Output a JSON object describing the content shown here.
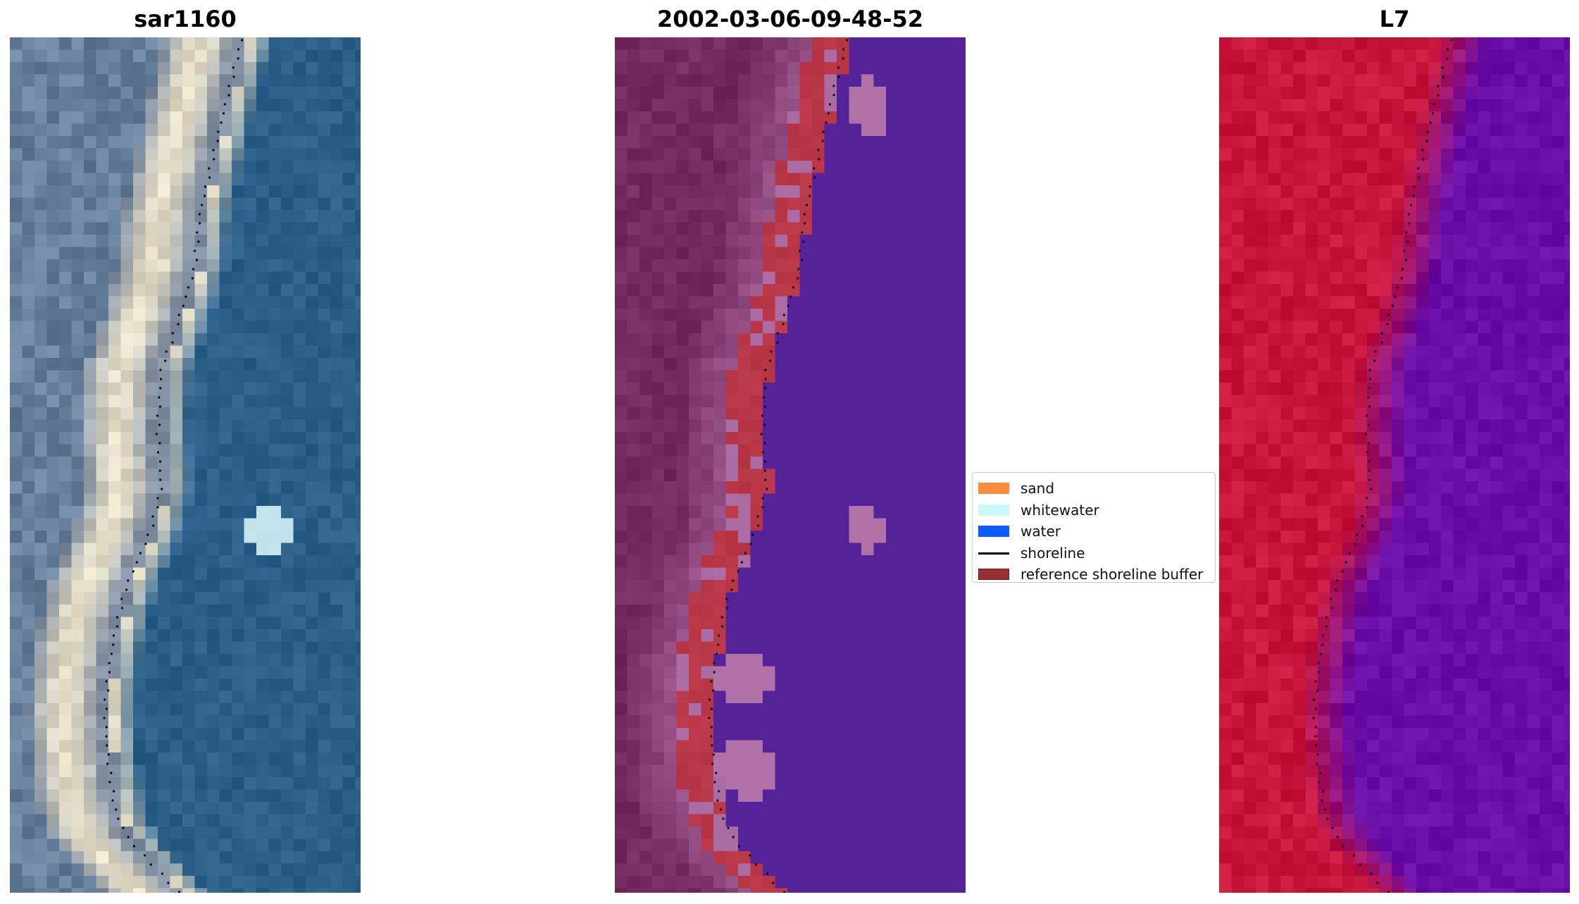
{
  "panels": [
    {
      "title": "sar1160",
      "kind": "rgb"
    },
    {
      "title": "2002-03-06-09-48-52",
      "kind": "classified"
    },
    {
      "title": "L7",
      "kind": "falsecolor"
    }
  ],
  "legend": {
    "items": [
      {
        "label": "sand",
        "color": "#ff8c3a",
        "style": "patch"
      },
      {
        "label": "whitewater",
        "color": "#c8f8f8",
        "style": "patch"
      },
      {
        "label": "water",
        "color": "#0a5cff",
        "style": "patch"
      },
      {
        "label": "shoreline",
        "color": "#000000",
        "style": "line"
      },
      {
        "label": "reference shoreline buffer",
        "color": "#9c2f2f",
        "style": "patch"
      }
    ]
  },
  "colors": {
    "rgb_land": "#7a8aa0",
    "rgb_sand": "#e8e0c8",
    "rgb_water": "#2a5f8a",
    "class_land": "#752a5e",
    "class_buffer": "#b83545",
    "class_water": "#55229a",
    "class_whitewater_overlay": "#b070a8",
    "fc_land": "#c8163a",
    "fc_water": "#6a0ea8"
  }
}
